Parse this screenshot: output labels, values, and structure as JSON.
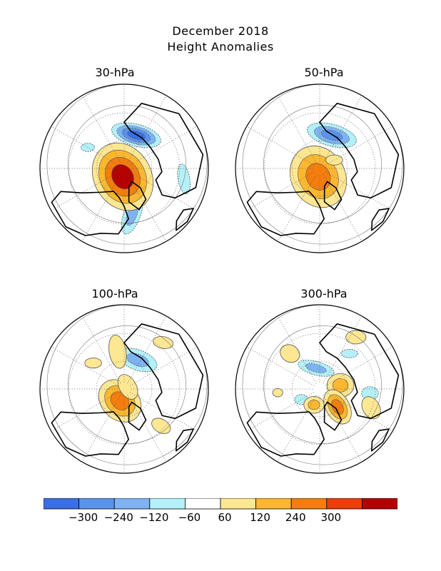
{
  "title": {
    "line1": "December 2018",
    "line2": "Height Anomalies"
  },
  "panels": [
    {
      "label": "30-hPa",
      "anomalies": [
        {
          "sign": "neg",
          "peak": -300,
          "ang": 20,
          "dist": 0.42,
          "rx": 0.3,
          "ry": 0.13,
          "rot": 15
        },
        {
          "sign": "neg",
          "peak": -120,
          "ang": 170,
          "dist": 0.55,
          "rx": 0.25,
          "ry": 0.1,
          "rot": 110
        },
        {
          "sign": "neg",
          "peak": -60,
          "ang": 100,
          "dist": 0.72,
          "rx": 0.18,
          "ry": 0.07,
          "rot": 80
        },
        {
          "sign": "neg",
          "peak": -60,
          "ang": 300,
          "dist": 0.5,
          "rx": 0.08,
          "ry": 0.05,
          "rot": 0
        },
        {
          "sign": "pos",
          "peak": 300,
          "ang": 190,
          "dist": 0.1,
          "rx": 0.42,
          "ry": 0.34,
          "rot": 60
        }
      ]
    },
    {
      "label": "50-hPa",
      "anomalies": [
        {
          "sign": "neg",
          "peak": -240,
          "ang": 20,
          "dist": 0.42,
          "rx": 0.3,
          "ry": 0.13,
          "rot": 15
        },
        {
          "sign": "pos",
          "peak": 240,
          "ang": 190,
          "dist": 0.1,
          "rx": 0.38,
          "ry": 0.32,
          "rot": 60
        },
        {
          "sign": "pos",
          "peak": 60,
          "ang": 60,
          "dist": 0.2,
          "rx": 0.1,
          "ry": 0.06,
          "rot": 0
        }
      ]
    },
    {
      "label": "100-hPa",
      "anomalies": [
        {
          "sign": "neg",
          "peak": -120,
          "ang": 25,
          "dist": 0.38,
          "rx": 0.24,
          "ry": 0.12,
          "rot": 20
        },
        {
          "sign": "pos",
          "peak": 240,
          "ang": 200,
          "dist": 0.15,
          "rx": 0.28,
          "ry": 0.22,
          "rot": 45
        },
        {
          "sign": "pos",
          "peak": 60,
          "ang": 60,
          "dist": 0.05,
          "rx": 0.16,
          "ry": 0.1,
          "rot": 60
        },
        {
          "sign": "pos",
          "peak": 60,
          "ang": 350,
          "dist": 0.45,
          "rx": 0.2,
          "ry": 0.1,
          "rot": 80
        },
        {
          "sign": "pos",
          "peak": 60,
          "ang": 135,
          "dist": 0.62,
          "rx": 0.12,
          "ry": 0.08,
          "rot": 30
        },
        {
          "sign": "pos",
          "peak": 60,
          "ang": 40,
          "dist": 0.72,
          "rx": 0.12,
          "ry": 0.07,
          "rot": 10
        },
        {
          "sign": "pos",
          "peak": 60,
          "ang": 310,
          "dist": 0.48,
          "rx": 0.1,
          "ry": 0.06,
          "rot": 0
        }
      ]
    },
    {
      "label": "300-hPa",
      "anomalies": [
        {
          "sign": "neg",
          "peak": -120,
          "ang": 350,
          "dist": 0.25,
          "rx": 0.22,
          "ry": 0.08,
          "rot": 15
        },
        {
          "sign": "neg",
          "peak": -60,
          "ang": 95,
          "dist": 0.6,
          "rx": 0.1,
          "ry": 0.08,
          "rot": 0
        },
        {
          "sign": "neg",
          "peak": -60,
          "ang": 240,
          "dist": 0.25,
          "rx": 0.08,
          "ry": 0.06,
          "rot": 0
        },
        {
          "sign": "neg",
          "peak": -60,
          "ang": 40,
          "dist": 0.55,
          "rx": 0.1,
          "ry": 0.05,
          "rot": 0
        },
        {
          "sign": "pos",
          "peak": 120,
          "ang": 80,
          "dist": 0.25,
          "rx": 0.16,
          "ry": 0.14,
          "rot": 0
        },
        {
          "sign": "pos",
          "peak": 240,
          "ang": 135,
          "dist": 0.3,
          "rx": 0.22,
          "ry": 0.14,
          "rot": 60
        },
        {
          "sign": "pos",
          "peak": 120,
          "ang": 200,
          "dist": 0.2,
          "rx": 0.12,
          "ry": 0.1,
          "rot": 0
        },
        {
          "sign": "pos",
          "peak": 60,
          "ang": 110,
          "dist": 0.65,
          "rx": 0.14,
          "ry": 0.1,
          "rot": 60
        },
        {
          "sign": "pos",
          "peak": 60,
          "ang": 35,
          "dist": 0.75,
          "rx": 0.12,
          "ry": 0.08,
          "rot": 0
        },
        {
          "sign": "pos",
          "peak": 60,
          "ang": 320,
          "dist": 0.55,
          "rx": 0.12,
          "ry": 0.1,
          "rot": 30
        },
        {
          "sign": "pos",
          "peak": 60,
          "ang": 265,
          "dist": 0.5,
          "rx": 0.06,
          "ry": 0.05,
          "rot": 0
        }
      ]
    }
  ],
  "colorbar": {
    "colors": [
      "#3a6fe3",
      "#5a93ea",
      "#7fb2f0",
      "#b4f0f7",
      "#ffffff",
      "#fde793",
      "#fbb72e",
      "#f47d0e",
      "#ee3c0b",
      "#b50000"
    ],
    "tick_labels": [
      "-300",
      "-240",
      "-120",
      "-60",
      "60",
      "120",
      "240",
      "300"
    ],
    "thresholds": [
      -300,
      -240,
      -120,
      -60,
      60,
      120,
      240,
      300
    ]
  }
}
